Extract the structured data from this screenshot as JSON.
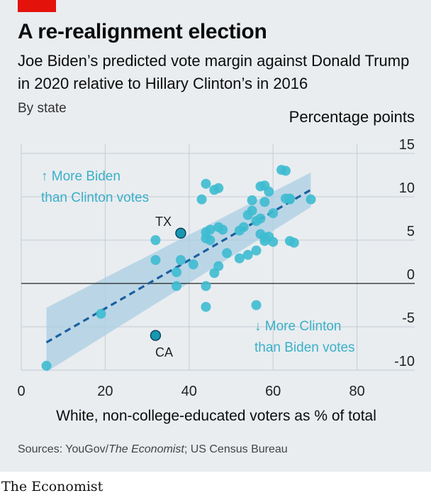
{
  "header": {
    "title": "A re-realignment election",
    "subtitle": "Joe Biden’s predicted vote margin against Donald Trump in 2020 relative to Hillary Clinton’s in 2016",
    "by_state": "By state",
    "unit": "Percentage points"
  },
  "footer": {
    "source_prefix": "Sources: YouGov/",
    "source_italic": "The Economist",
    "source_suffix": "; US Census Bureau",
    "brand": "The Economist"
  },
  "colors": {
    "dot": "#3ebbd0",
    "dot_highlight": "#1798b0",
    "trend": "#1a5fa0",
    "band": "#a9cde3",
    "annotation": "#3ab0c8",
    "panel": "#e9edf0"
  },
  "chart_data": {
    "type": "scatter",
    "xlabel": "White, non-college-educated voters as % of total",
    "ylabel": "Percentage points",
    "xlim": [
      0,
      90
    ],
    "ylim": [
      -10,
      15
    ],
    "x_ticks": [
      "0",
      "20",
      "40",
      "60",
      "80"
    ],
    "y_ticks": [
      "15",
      "10",
      "5",
      "0",
      "-5",
      "-10"
    ],
    "grid": true,
    "annotations": {
      "biden_up": "↑ More Biden",
      "biden_up_2": "than Clinton votes",
      "clinton_down": "↓ More Clinton",
      "clinton_down_2": "than Biden votes",
      "tx": "TX",
      "ca": "CA"
    },
    "trend_line": {
      "x": [
        6,
        69
      ],
      "y": [
        -6.8,
        10.8
      ]
    },
    "confidence_band": {
      "x": [
        6,
        69
      ],
      "upper": [
        -2.8,
        12.8
      ],
      "lower": [
        -10.2,
        8.8
      ]
    },
    "labeled_points": [
      {
        "label": "TX",
        "x": 38,
        "y": 5.8
      },
      {
        "label": "CA",
        "x": 32,
        "y": -6
      }
    ],
    "points": [
      [
        6,
        -9.5
      ],
      [
        19,
        -3.5
      ],
      [
        32,
        5
      ],
      [
        32,
        2.7
      ],
      [
        38,
        2.7
      ],
      [
        37,
        1.3
      ],
      [
        37,
        -0.3
      ],
      [
        41,
        2.2
      ],
      [
        43,
        9.7
      ],
      [
        44,
        11.5
      ],
      [
        46,
        10.8
      ],
      [
        47,
        11.0
      ],
      [
        44,
        5.9
      ],
      [
        45,
        6.2
      ],
      [
        44,
        5.2
      ],
      [
        45,
        5.0
      ],
      [
        47,
        6.5
      ],
      [
        48,
        6.2
      ],
      [
        47,
        2.0
      ],
      [
        46,
        1.2
      ],
      [
        49,
        3.5
      ],
      [
        44,
        -0.3
      ],
      [
        44,
        -2.7
      ],
      [
        52,
        6.1
      ],
      [
        53,
        6.5
      ],
      [
        54,
        7.9
      ],
      [
        55,
        8.4
      ],
      [
        55,
        9.6
      ],
      [
        56,
        7.2
      ],
      [
        57,
        7.5
      ],
      [
        58,
        9.4
      ],
      [
        59,
        10.6
      ],
      [
        57,
        11.2
      ],
      [
        58,
        11.3
      ],
      [
        60,
        8.1
      ],
      [
        63,
        9.8
      ],
      [
        62,
        13.1
      ],
      [
        63,
        13.0
      ],
      [
        64,
        9.7
      ],
      [
        64,
        9.8
      ],
      [
        59,
        5.4
      ],
      [
        57,
        5.7
      ],
      [
        58,
        5.3
      ],
      [
        60,
        4.8
      ],
      [
        58,
        4.9
      ],
      [
        54,
        3.3
      ],
      [
        52,
        2.9
      ],
      [
        56,
        3.8
      ],
      [
        56,
        -2.5
      ],
      [
        64,
        4.9
      ],
      [
        65,
        4.7
      ],
      [
        69,
        9.7
      ]
    ]
  }
}
